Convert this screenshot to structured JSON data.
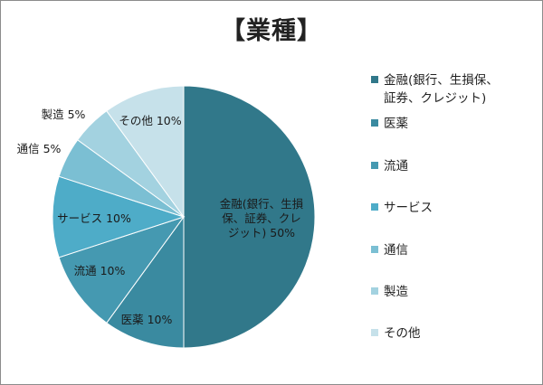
{
  "chart_data": {
    "type": "pie",
    "title": "【業種】",
    "slices": [
      {
        "label": "金融(銀行、生損保、証券、クレジット)",
        "value": 50,
        "data_label": [
          "金融(銀行、生損",
          "保、証券、クレ",
          "ジット) 50%"
        ],
        "color": "#31788a"
      },
      {
        "label": "医薬",
        "value": 10,
        "data_label": [
          "医薬 10%"
        ],
        "color": "#3a8aa0"
      },
      {
        "label": "流通",
        "value": 10,
        "data_label": [
          "流通 10%"
        ],
        "color": "#4599b1"
      },
      {
        "label": "サービス",
        "value": 10,
        "data_label": [
          "サービス 10%"
        ],
        "color": "#4eacc8"
      },
      {
        "label": "通信",
        "value": 5,
        "data_label": [
          "通信 5%"
        ],
        "color": "#7bbfd3"
      },
      {
        "label": "製造",
        "value": 5,
        "data_label": [
          "製造 5%"
        ],
        "color": "#a3d2e0"
      },
      {
        "label": "その他",
        "value": 10,
        "data_label": [
          "その他 10%"
        ],
        "color": "#c6e1ea"
      }
    ],
    "legend": {
      "placement": "right",
      "entries": [
        [
          "金融(銀行、生損保、",
          "証券、クレジット)"
        ],
        [
          "医薬"
        ],
        [
          "流通"
        ],
        [
          "サービス"
        ],
        [
          "通信"
        ],
        [
          "製造"
        ],
        [
          "その他"
        ]
      ]
    }
  }
}
